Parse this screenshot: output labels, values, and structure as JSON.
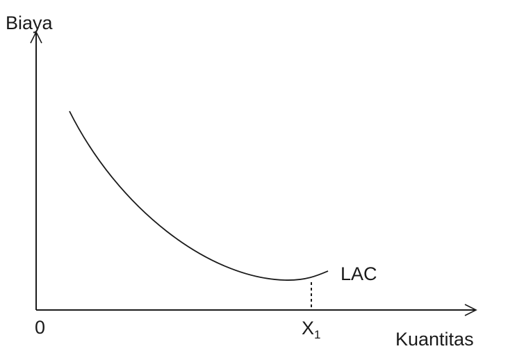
{
  "chart_data": {
    "type": "line",
    "ylabel": "Biaya",
    "xlabel": "Kuantitas",
    "origin_label": "0",
    "x_marker": {
      "label": "X",
      "subscript": "1"
    },
    "series": [
      {
        "name": "LAC"
      }
    ]
  }
}
